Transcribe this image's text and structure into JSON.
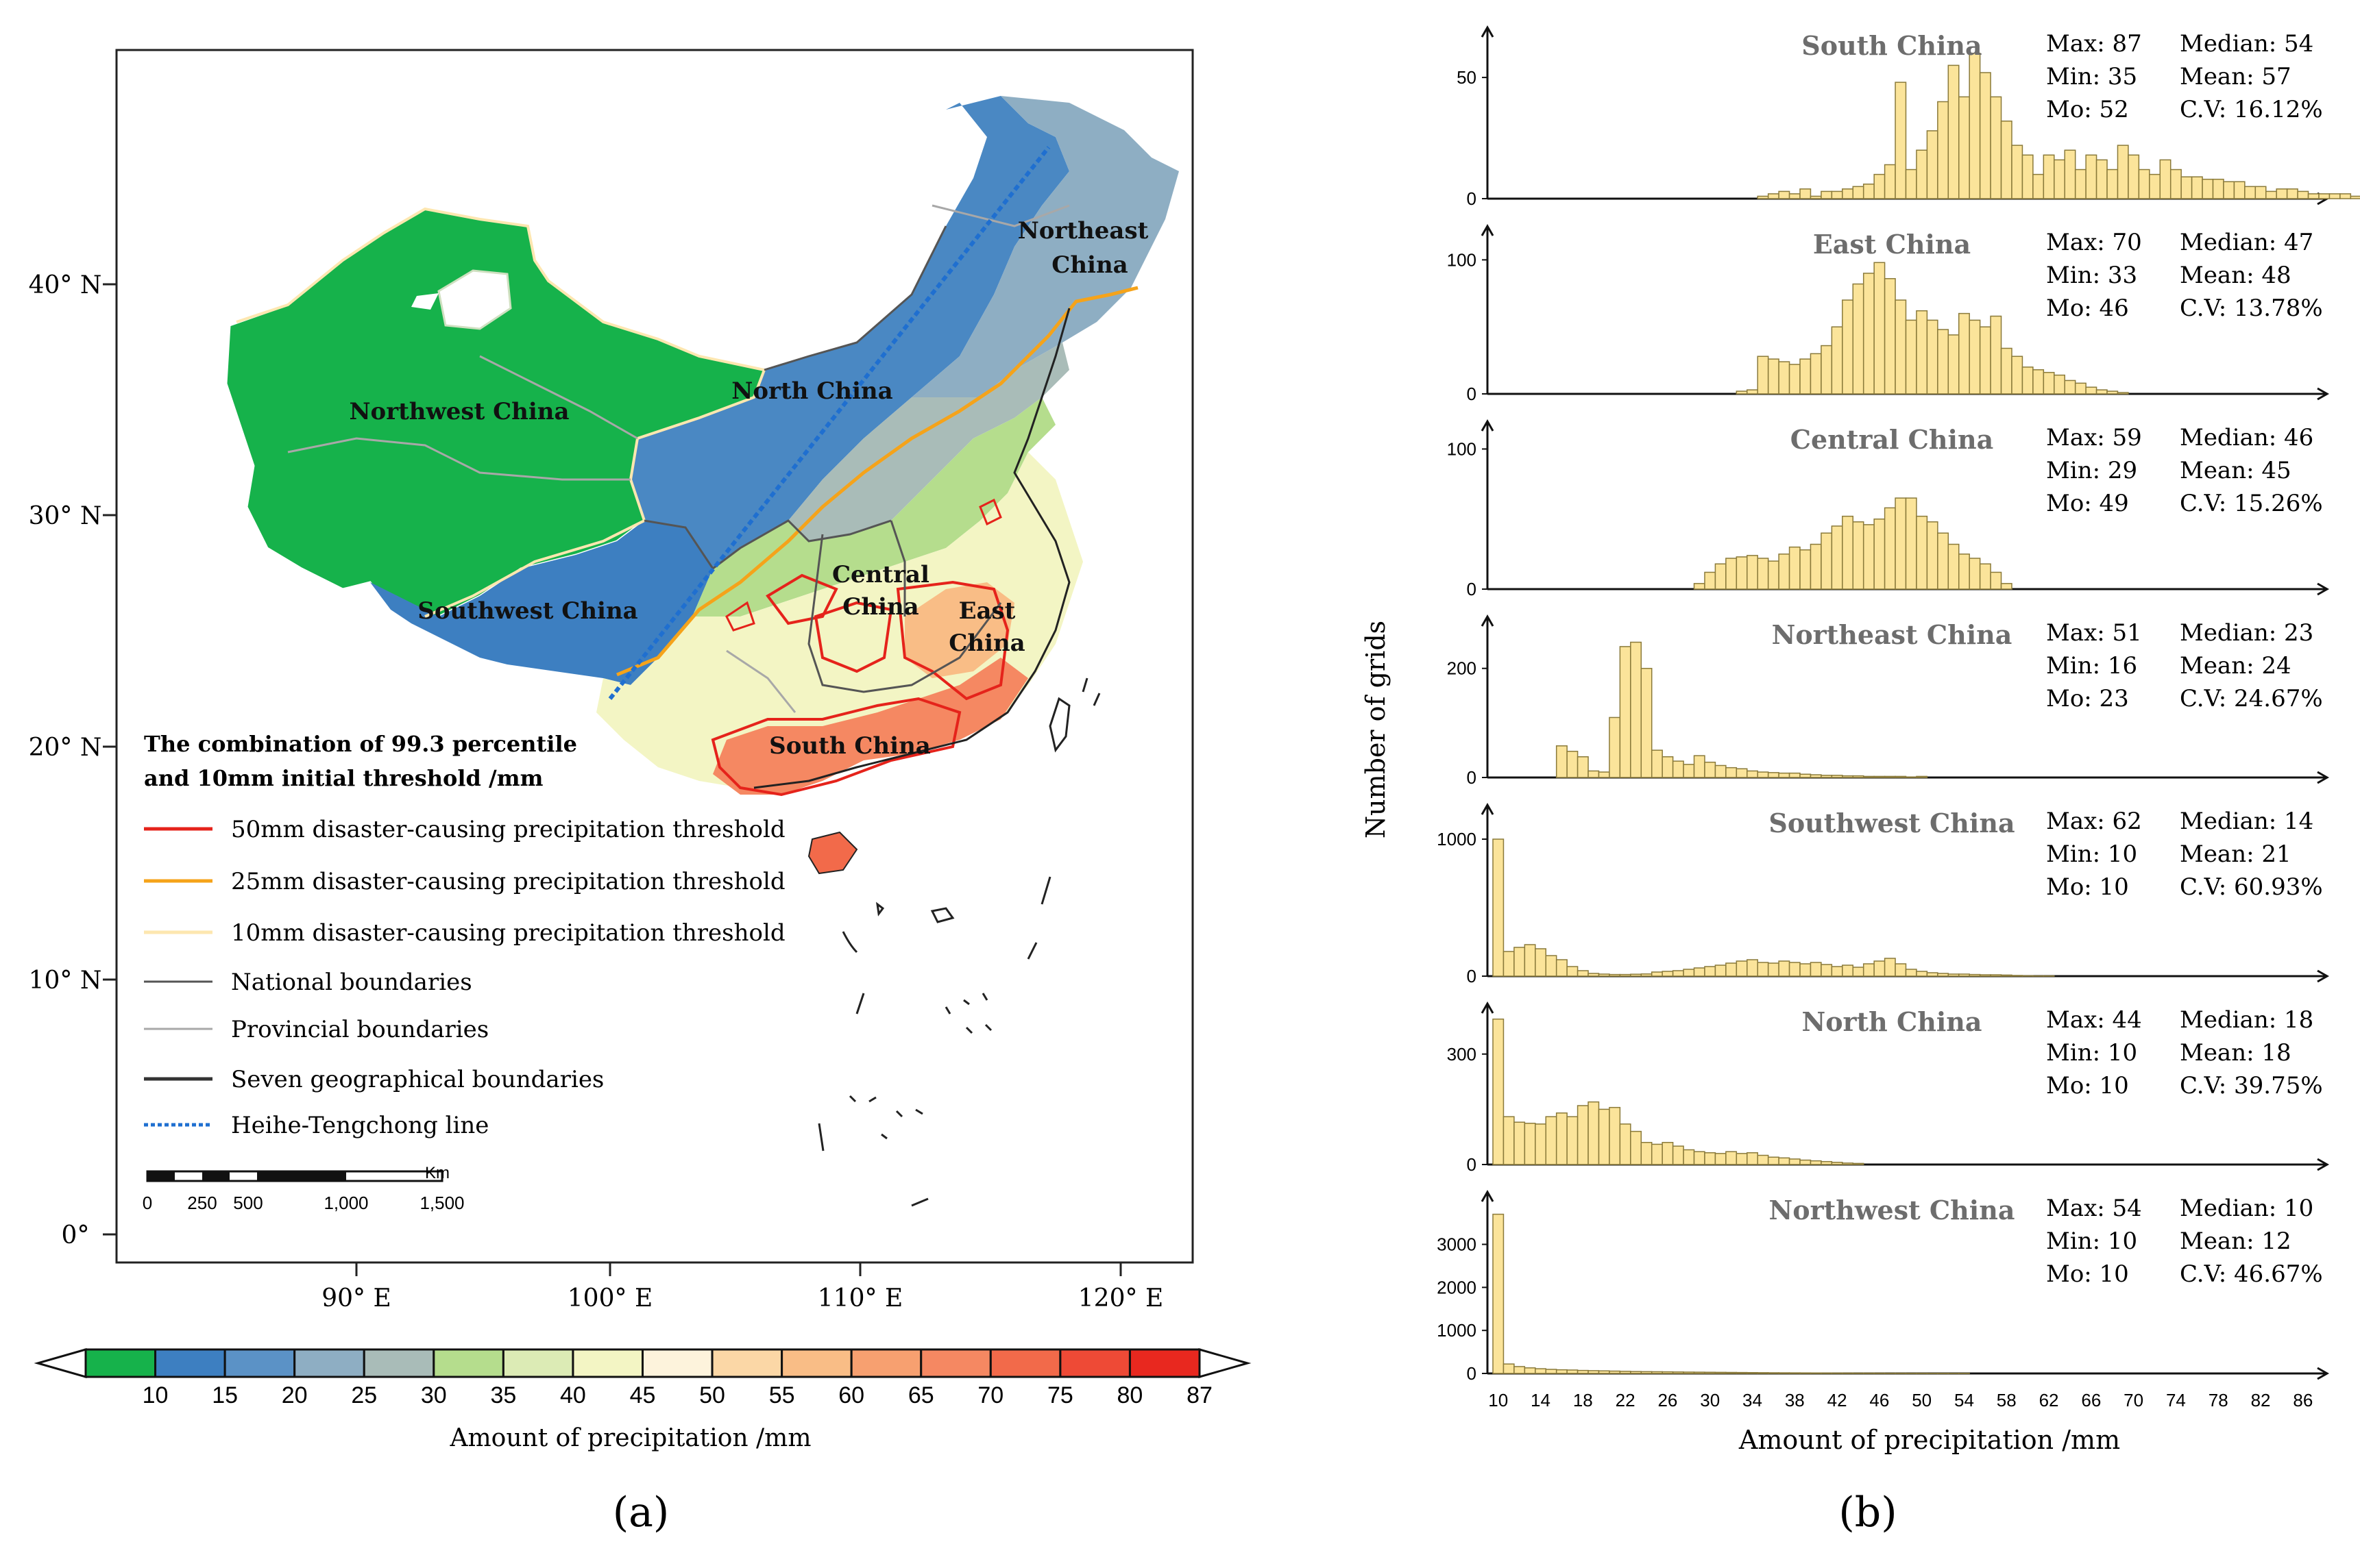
{
  "figure": {
    "panel_a_label": "(a)",
    "panel_b_label": "(b)"
  },
  "map": {
    "regions": [
      {
        "name": "Northwest China"
      },
      {
        "name": "North China"
      },
      {
        "name": "Northeast",
        "name2": "China"
      },
      {
        "name": "Southwest China"
      },
      {
        "name": "Central",
        "name2": "China"
      },
      {
        "name": "East",
        "name2": "China"
      },
      {
        "name": "South China"
      }
    ],
    "lat_labels": [
      "40° N",
      "30° N",
      "20° N",
      "10° N",
      "0°"
    ],
    "lon_labels": [
      "90° E",
      "100° E",
      "110° E",
      "120° E"
    ],
    "legend": {
      "title_line1": "The combination of 99.3 percentile",
      "title_line2": "and 10mm initial threshold /mm",
      "items": [
        {
          "label": "50mm disaster-causing precipitation threshold",
          "color": "#e5231b"
        },
        {
          "label": "25mm disaster-causing precipitation threshold",
          "color": "#f5a31a"
        },
        {
          "label": "10mm disaster-causing precipitation threshold",
          "color": "#fde7b0"
        },
        {
          "label": "National boundaries",
          "color": "#555555"
        },
        {
          "label": "Provincial boundaries",
          "color": "#a8a8a8"
        },
        {
          "label": "Seven geographical boundaries",
          "color": "#333333"
        },
        {
          "label": "Heihe-Tengchong line",
          "color": "#1f6fd0"
        }
      ]
    },
    "scalebar": {
      "unit": "Km",
      "ticks": [
        "0",
        "250",
        "500",
        "1,000",
        "1,500"
      ]
    },
    "colorbar": {
      "labels": [
        "10",
        "15",
        "20",
        "25",
        "30",
        "35",
        "40",
        "45",
        "50",
        "55",
        "60",
        "65",
        "70",
        "75",
        "80",
        "87"
      ],
      "colors": [
        "#16b24b",
        "#3d7fc1",
        "#5b92c6",
        "#8eaec3",
        "#a9bcb8",
        "#b5dd8d",
        "#dcebb5",
        "#f3f5c4",
        "#fdf3dc",
        "#fbd7a6",
        "#f9bd86",
        "#f7a070",
        "#f58862",
        "#f26a4a",
        "#ee4a36",
        "#e8281f"
      ],
      "title": "Amount of precipitation /mm"
    }
  },
  "chart_data": {
    "type": "bar",
    "ylabel": "Number of grids",
    "xlabel": "Amount of precipitation /mm",
    "x_ticks": [
      "10",
      "14",
      "18",
      "22",
      "26",
      "30",
      "34",
      "38",
      "42",
      "46",
      "50",
      "54",
      "58",
      "62",
      "66",
      "70",
      "74",
      "78",
      "82",
      "86"
    ],
    "x_range": [
      10,
      87
    ],
    "panels": [
      {
        "name": "South China",
        "yticks": [
          "0",
          "50"
        ],
        "ymax": 65,
        "stats": [
          "Max: 87",
          "Min: 35",
          "Mo: 52",
          "Median: 54",
          "Mean: 57",
          "C.V: 16.12%"
        ],
        "values": [
          0,
          0,
          0,
          0,
          0,
          0,
          0,
          0,
          0,
          0,
          0,
          0,
          0,
          0,
          0,
          0,
          0,
          0,
          0,
          0,
          0,
          0,
          0,
          0,
          0,
          1,
          2,
          3,
          2,
          4,
          1,
          3,
          3,
          4,
          5,
          6,
          10,
          14,
          48,
          12,
          20,
          28,
          40,
          55,
          42,
          60,
          52,
          42,
          32,
          22,
          18,
          10,
          18,
          16,
          20,
          12,
          18,
          16,
          12,
          22,
          18,
          12,
          10,
          16,
          12,
          9,
          9,
          8,
          8,
          7,
          7,
          5,
          5,
          3,
          4,
          4,
          3,
          2,
          2,
          2,
          2,
          1
        ]
      },
      {
        "name": "East China",
        "yticks": [
          "0",
          "100"
        ],
        "ymax": 115,
        "stats": [
          "Max: 70",
          "Min: 33",
          "Mo: 46",
          "Median: 47",
          "Mean: 48",
          "C.V: 13.78%"
        ],
        "values": [
          0,
          0,
          0,
          0,
          0,
          0,
          0,
          0,
          0,
          0,
          0,
          0,
          0,
          0,
          0,
          0,
          0,
          0,
          0,
          0,
          0,
          0,
          0,
          2,
          3,
          28,
          26,
          24,
          22,
          26,
          30,
          36,
          50,
          70,
          82,
          90,
          98,
          86,
          70,
          55,
          62,
          55,
          48,
          44,
          60,
          55,
          50,
          58,
          34,
          28,
          20,
          18,
          16,
          14,
          10,
          8,
          5,
          3,
          2,
          1
        ]
      },
      {
        "name": "Central China",
        "yticks": [
          "0",
          "100"
        ],
        "ymax": 110,
        "stats": [
          "Max: 59",
          "Min: 29",
          "Mo: 49",
          "Median: 46",
          "Mean: 45",
          "C.V: 15.26%"
        ],
        "values": [
          0,
          0,
          0,
          0,
          0,
          0,
          0,
          0,
          0,
          0,
          0,
          0,
          0,
          0,
          0,
          0,
          0,
          0,
          0,
          4,
          12,
          18,
          22,
          23,
          24,
          22,
          20,
          25,
          30,
          28,
          32,
          40,
          45,
          52,
          48,
          46,
          50,
          58,
          65,
          65,
          52,
          48,
          40,
          32,
          25,
          22,
          18,
          12,
          4
        ]
      },
      {
        "name": "Northeast China",
        "yticks": [
          "0",
          "200"
        ],
        "ymax": 270,
        "stats": [
          "Max: 51",
          "Min: 16",
          "Mo: 23",
          "Median: 23",
          "Mean: 24",
          "C.V: 24.67%"
        ],
        "values": [
          0,
          0,
          0,
          0,
          0,
          0,
          58,
          48,
          38,
          12,
          10,
          110,
          240,
          248,
          200,
          50,
          38,
          30,
          24,
          40,
          28,
          22,
          18,
          16,
          12,
          10,
          9,
          8,
          8,
          6,
          5,
          4,
          4,
          3,
          3,
          2,
          2,
          2,
          2,
          1,
          2
        ]
      },
      {
        "name": "Southwest China",
        "yticks": [
          "0",
          "1000"
        ],
        "ymax": 1150,
        "stats": [
          "Max: 62",
          "Min: 10",
          "Mo: 10",
          "Median: 14",
          "Mean: 21",
          "C.V: 60.93%"
        ],
        "values": [
          1000,
          180,
          210,
          230,
          200,
          150,
          120,
          70,
          40,
          20,
          15,
          12,
          12,
          14,
          16,
          30,
          35,
          40,
          50,
          60,
          70,
          80,
          95,
          110,
          120,
          100,
          95,
          110,
          100,
          90,
          100,
          85,
          70,
          80,
          65,
          90,
          110,
          130,
          90,
          50,
          35,
          25,
          20,
          15,
          15,
          12,
          10,
          10,
          8,
          5,
          3,
          2,
          2
        ]
      },
      {
        "name": "North China",
        "yticks": [
          "0",
          "300"
        ],
        "ymax": 400,
        "stats": [
          "Max: 44",
          "Min: 10",
          "Mo: 10",
          "Median: 18",
          "Mean: 18",
          "C.V: 39.75%"
        ],
        "values": [
          395,
          130,
          115,
          112,
          110,
          130,
          140,
          130,
          160,
          170,
          150,
          155,
          110,
          90,
          60,
          55,
          60,
          50,
          40,
          35,
          32,
          30,
          35,
          30,
          32,
          25,
          20,
          18,
          15,
          12,
          10,
          8,
          6,
          4,
          3
        ]
      },
      {
        "name": "Northwest China",
        "yticks": [
          "0",
          "1000",
          "2000",
          "3000"
        ],
        "ymax": 3900,
        "stats": [
          "Max: 54",
          "Min: 10",
          "Mo: 10",
          "Median: 10",
          "Mean: 12",
          "C.V: 46.67%"
        ],
        "values": [
          3700,
          220,
          160,
          130,
          110,
          95,
          85,
          80,
          70,
          65,
          60,
          55,
          50,
          45,
          42,
          40,
          38,
          35,
          32,
          30,
          28,
          26,
          24,
          22,
          20,
          18,
          16,
          15,
          14,
          13,
          12,
          11,
          10,
          9,
          8,
          8,
          7,
          6,
          6,
          5,
          5,
          4,
          4,
          3,
          3
        ]
      }
    ]
  }
}
